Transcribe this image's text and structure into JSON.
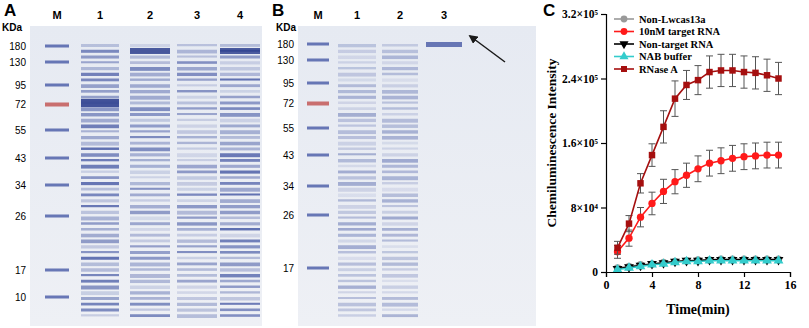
{
  "gels": [
    {
      "label": "A",
      "unit": "KDa",
      "lanes": [
        "M",
        "1",
        "2",
        "3",
        "4"
      ],
      "markers": [
        180,
        130,
        95,
        72,
        55,
        43,
        34,
        26,
        17,
        10
      ]
    },
    {
      "label": "B",
      "unit": "KDa",
      "lanes": [
        "M",
        "1",
        "2",
        "3"
      ],
      "markers": [
        180,
        130,
        95,
        72,
        55,
        43,
        34,
        26,
        17
      ]
    }
  ],
  "chart_data": {
    "type": "line",
    "panel_label": "C",
    "x_label": "Time(min)",
    "y_label": "Chemiluminescence Intensity",
    "x": [
      1,
      2,
      3,
      4,
      5,
      6,
      7,
      8,
      9,
      10,
      11,
      12,
      13,
      14,
      15
    ],
    "xlim": [
      0,
      16
    ],
    "xticks": [
      0,
      4,
      8,
      12,
      16
    ],
    "ylim": [
      0,
      320000
    ],
    "yticks": [
      0,
      {
        "value": 80000,
        "label": "8×10⁴"
      },
      {
        "value": 160000,
        "label": "1.6×10⁵"
      },
      {
        "value": 240000,
        "label": "2.4×10⁵"
      },
      {
        "value": 320000,
        "label": "3.2×10⁵"
      }
    ],
    "legend": "upper left",
    "series": [
      {
        "name": "Non-Lwcas13a",
        "color": "#999999",
        "marker": "circle",
        "values": [
          5000,
          7000,
          9000,
          10000,
          12000,
          13000,
          14000,
          15000,
          15000,
          16000,
          16000,
          16000,
          16000,
          16000,
          16000
        ],
        "errors": [
          2000,
          2000,
          2000,
          2000,
          2000,
          2000,
          2000,
          2000,
          2000,
          2000,
          2000,
          2000,
          2000,
          2000,
          2000
        ]
      },
      {
        "name": "10nM target RNA",
        "color": "#ff1a1a",
        "marker": "circle",
        "values": [
          25000,
          42000,
          68000,
          85000,
          100000,
          112000,
          120000,
          128000,
          135000,
          138000,
          141000,
          143000,
          144000,
          145000,
          145000
        ],
        "errors": [
          8000,
          10000,
          12000,
          14000,
          15000,
          15000,
          15000,
          16000,
          16000,
          16000,
          16000,
          16000,
          16000,
          16000,
          16000
        ]
      },
      {
        "name": "Non-target RNA",
        "color": "#000000",
        "marker": "triangle-down",
        "values": [
          4000,
          6000,
          8000,
          10000,
          11000,
          13000,
          14000,
          14000,
          15000,
          15000,
          15000,
          15000,
          15000,
          15000,
          15000
        ],
        "errors": [
          1500,
          1500,
          1500,
          1500,
          1500,
          1500,
          1500,
          1500,
          1500,
          1500,
          1500,
          1500,
          1500,
          1500,
          1500
        ]
      },
      {
        "name": "NAB buffer",
        "color": "#33cccc",
        "marker": "triangle",
        "values": [
          3000,
          5000,
          7000,
          9000,
          10000,
          12000,
          13000,
          13000,
          14000,
          14000,
          14000,
          14000,
          14000,
          14000,
          14000
        ],
        "errors": [
          1500,
          1500,
          1500,
          1500,
          1500,
          1500,
          1500,
          1500,
          1500,
          1500,
          1500,
          1500,
          1500,
          1500,
          1500
        ]
      },
      {
        "name": "RNase A",
        "color": "#a50f0f",
        "marker": "square",
        "values": [
          30000,
          60000,
          110000,
          145000,
          180000,
          215000,
          232000,
          238000,
          248000,
          250000,
          250000,
          248000,
          247000,
          244000,
          240000
        ],
        "errors": [
          8000,
          10000,
          12000,
          14000,
          20000,
          22000,
          18000,
          18000,
          20000,
          20000,
          20000,
          20000,
          20000,
          20000,
          20000
        ]
      }
    ]
  }
}
